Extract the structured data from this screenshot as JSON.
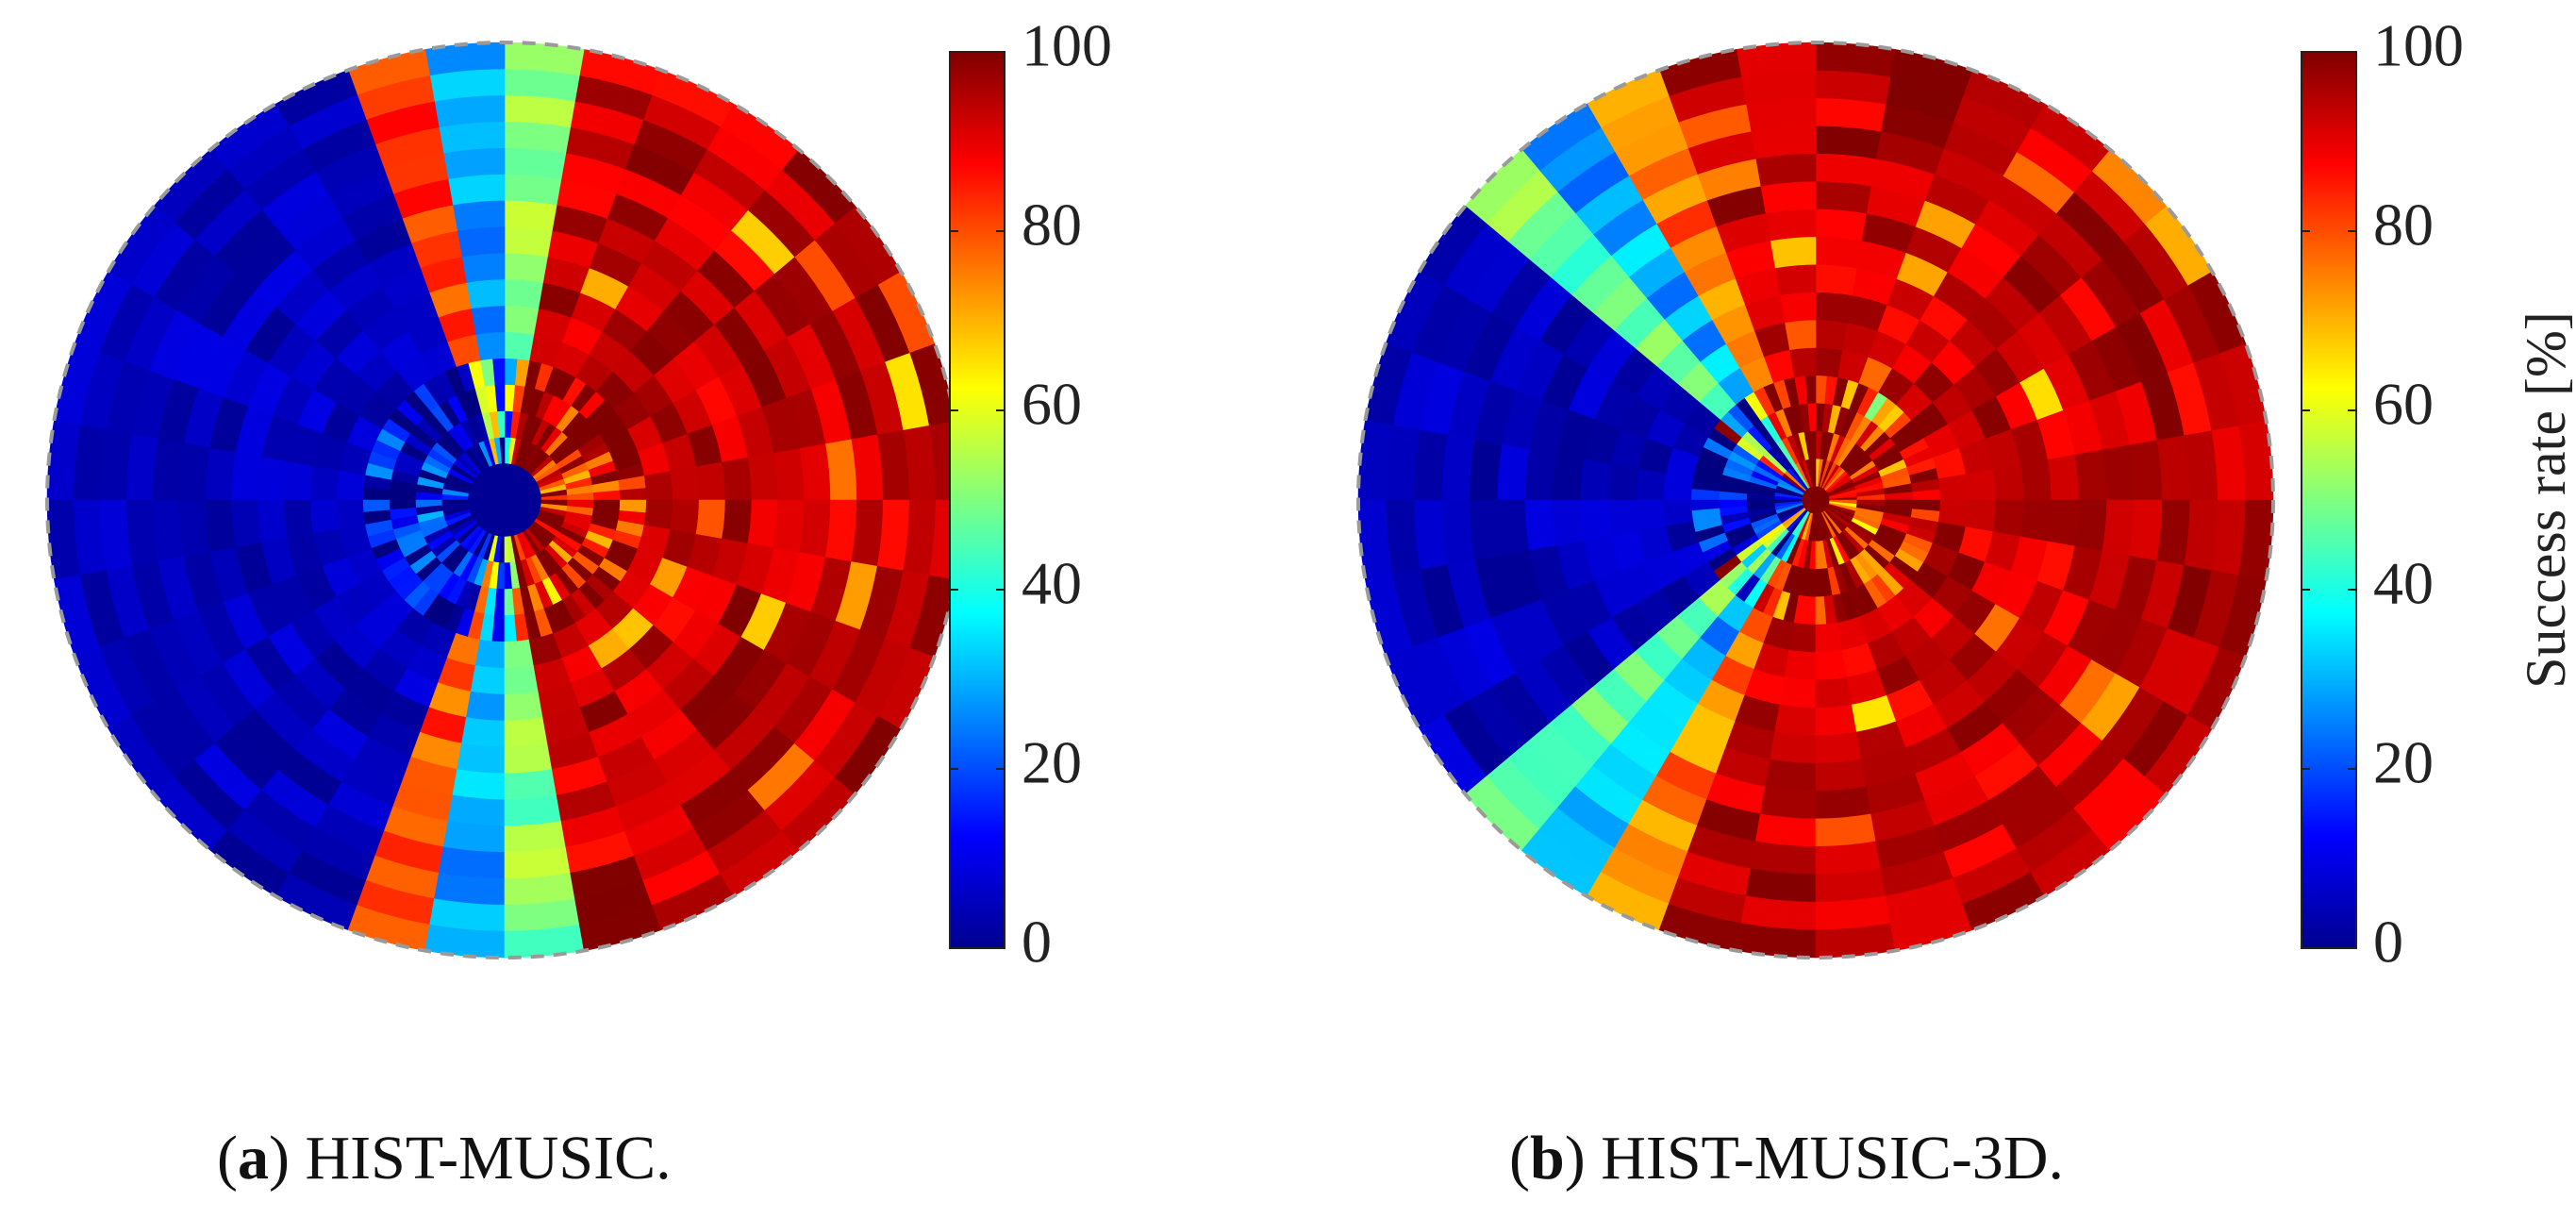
{
  "chart_data": [
    {
      "type": "heatmap",
      "subtype": "polar",
      "panel_letter": "a",
      "caption": "HIST-MUSIC.",
      "colormap": "jet",
      "clim": [
        0,
        100
      ],
      "colorbar": {
        "ticks": [
          0,
          20,
          40,
          60,
          80,
          100
        ],
        "label": ""
      },
      "grid": "polar bins, 16 radial rings x 36 angular sectors (estimated)",
      "description_values": {
        "left_half_success_rate": 0,
        "transition_band_success_rate": [
          10,
          60
        ],
        "right_half_success_rate": [
          80,
          100
        ]
      },
      "rings": 16,
      "sectors": 36,
      "model": {
        "edge_angle_deg": 92,
        "edge_width_deg": 28,
        "center_hole": 0.08,
        "inner_ring_noise": 0.45,
        "seed": 11
      }
    },
    {
      "type": "heatmap",
      "subtype": "polar",
      "panel_letter": "b",
      "caption": "HIST-MUSIC-3D.",
      "colormap": "jet",
      "clim": [
        0,
        100
      ],
      "colorbar": {
        "ticks": [
          0,
          20,
          40,
          60,
          80,
          100
        ],
        "label": "Success rate [%]"
      },
      "grid": "polar bins, 16 radial rings x 36 angular sectors (estimated)",
      "description_values": {
        "left_quarter_success_rate": 0,
        "transition_band_success_rate": [
          20,
          70
        ],
        "right_side_success_rate": [
          85,
          100
        ]
      },
      "rings": 16,
      "sectors": 36,
      "model": {
        "edge_angle_deg": 128,
        "edge_width_deg": 30,
        "center_hole": 0.03,
        "inner_ring_noise": 0.5,
        "seed": 29
      }
    }
  ],
  "colors": {
    "nan_center": "#7f0000",
    "dashed_edge": "#9a9a9a"
  }
}
